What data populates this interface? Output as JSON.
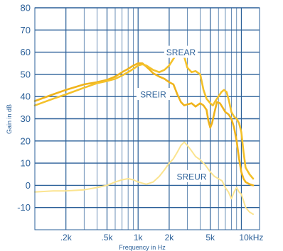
{
  "chart_data": {
    "type": "line",
    "xlabel": "Frequency in Hz",
    "ylabel": "Gain in dB",
    "xscale": "log",
    "xlim": [
      100,
      15000
    ],
    "ylim": [
      -20,
      80
    ],
    "yticks": [
      80,
      70,
      60,
      50,
      40,
      30,
      20,
      10,
      0,
      -10
    ],
    "xticks": [
      {
        "value": 200,
        "label": ".2k"
      },
      {
        "value": 500,
        "label": ".5k"
      },
      {
        "value": 1000,
        "label": "1k"
      },
      {
        "value": 2000,
        "label": "2k"
      },
      {
        "value": 5000,
        "label": "5k"
      },
      {
        "value": 10000,
        "label": "10kHz"
      }
    ],
    "grid": true,
    "colors": {
      "axis": "#2a5f98",
      "grid": "#2a5f98",
      "SREAR": "#f4c12a",
      "SREIR": "#f0b41c",
      "SREUR": "#fbe48f",
      "label_bg": "#ffffff"
    },
    "series": [
      {
        "name": "SREAR",
        "label_at": {
          "x": 2600,
          "y": 60
        },
        "x": [
          100,
          150,
          200,
          300,
          400,
          500,
          600,
          700,
          800,
          900,
          1000,
          1100,
          1200,
          1400,
          1600,
          1800,
          2000,
          2200,
          2400,
          2600,
          2800,
          3000,
          3300,
          3600,
          4000,
          4300,
          4600,
          5000,
          5300,
          5600,
          6000,
          6400,
          6800,
          7200,
          7600,
          8000,
          8500,
          9000,
          9500,
          10000,
          10500,
          11000,
          12000,
          13000
        ],
        "y": [
          36,
          39,
          41,
          44,
          46,
          47,
          48,
          49.5,
          51,
          52.5,
          54,
          54.5,
          54,
          52,
          51,
          52,
          54,
          57,
          59.5,
          60.5,
          58,
          53,
          51,
          51.5,
          50,
          43,
          39,
          37,
          36,
          38,
          40,
          42,
          43,
          42,
          38,
          33,
          31,
          30,
          28,
          24,
          15,
          8,
          5,
          3
        ]
      },
      {
        "name": "SREIR",
        "label_at": {
          "x": 1400,
          "y": 41
        },
        "x": [
          100,
          150,
          200,
          300,
          400,
          500,
          600,
          700,
          800,
          900,
          1000,
          1100,
          1200,
          1300,
          1400,
          1600,
          1800,
          2000,
          2200,
          2400,
          2600,
          2800,
          3000,
          3300,
          3600,
          4000,
          4300,
          4600,
          4800,
          5000,
          5200,
          5500,
          5800,
          6200,
          6600,
          7000,
          7500,
          8000,
          8500,
          9000,
          9500,
          10000,
          10500,
          11000,
          12000,
          13000
        ],
        "y": [
          38,
          41,
          43,
          45.5,
          46.5,
          47.5,
          49,
          51,
          52.5,
          54,
          55,
          55,
          53.5,
          52,
          50.5,
          49,
          48,
          46.5,
          45.5,
          41,
          37.5,
          36,
          36.5,
          37,
          35.5,
          37,
          36,
          34,
          29,
          26,
          28,
          33,
          37.5,
          37,
          35,
          33,
          32,
          30,
          26,
          20,
          12,
          6,
          3,
          1.5,
          0.5,
          0
        ]
      },
      {
        "name": "SREUR",
        "label_at": {
          "x": 3300,
          "y": 4
        },
        "x": [
          100,
          150,
          200,
          300,
          400,
          500,
          600,
          700,
          800,
          900,
          1000,
          1200,
          1400,
          1600,
          1800,
          2000,
          2200,
          2400,
          2600,
          2800,
          3000,
          3300,
          3600,
          4000,
          4500,
          5000,
          5500,
          6000,
          6500,
          7000,
          7500,
          8000,
          8500,
          9000,
          9500,
          10000,
          10500,
          11000,
          12000,
          13000
        ],
        "y": [
          -3,
          -2.5,
          -2.5,
          -2,
          -1,
          0,
          1.5,
          2.5,
          3,
          2.5,
          1.5,
          0.5,
          1.5,
          4,
          7,
          10,
          12,
          15,
          18,
          19.5,
          18,
          15.5,
          13,
          11.5,
          9,
          6,
          4,
          3,
          2,
          -1,
          -3,
          -6,
          -3,
          -1,
          -3,
          -4,
          -7,
          -10,
          -12,
          -13
        ]
      }
    ]
  }
}
